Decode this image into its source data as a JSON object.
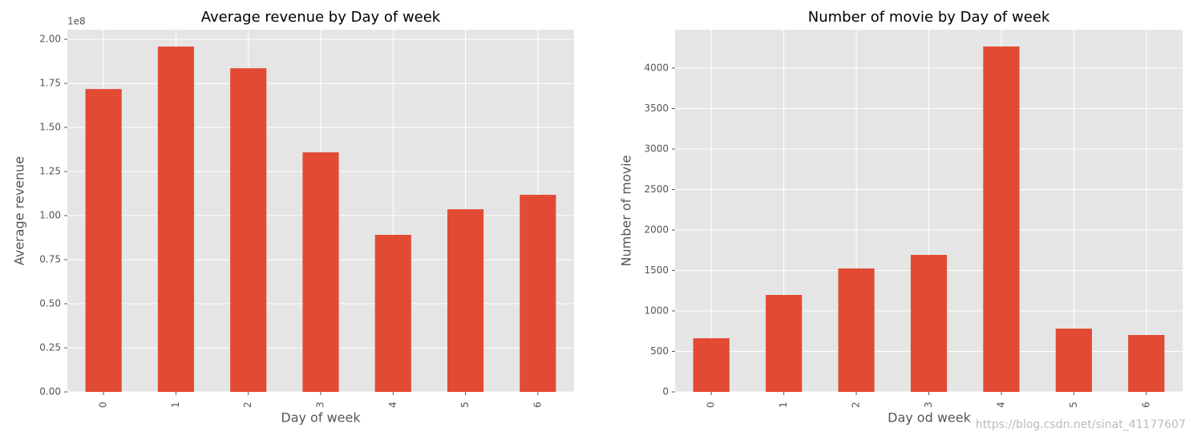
{
  "chart_data": [
    {
      "type": "bar",
      "title": "Average revenue by Day of week",
      "x_label": "Day of week",
      "y_label": "Average revenue",
      "y_offset_label": "1e8",
      "categories": [
        "0",
        "1",
        "2",
        "3",
        "4",
        "5",
        "6"
      ],
      "values": [
        1.718,
        1.959,
        1.836,
        1.359,
        0.891,
        1.036,
        1.118
      ],
      "color": "#e24a33",
      "ylim": [
        0,
        2.055
      ],
      "yticks": [
        {
          "value": 0,
          "label": "0.00"
        },
        {
          "value": 0.25,
          "label": "0.25"
        },
        {
          "value": 0.5,
          "label": "0.50"
        },
        {
          "value": 0.75,
          "label": "0.75"
        },
        {
          "value": 1,
          "label": "1.00"
        },
        {
          "value": 1.25,
          "label": "1.25"
        },
        {
          "value": 1.5,
          "label": "1.50"
        },
        {
          "value": 1.75,
          "label": "1.75"
        },
        {
          "value": 2,
          "label": "2.00"
        }
      ],
      "grid": true
    },
    {
      "type": "bar",
      "title": "Number of movie by Day of week",
      "x_label": "Day od week",
      "y_label": "Number of movie",
      "watermark": "https://blog.csdn.net/sinat_41177607",
      "categories": [
        "0",
        "1",
        "2",
        "3",
        "4",
        "5",
        "6"
      ],
      "values": [
        663,
        1198,
        1525,
        1693,
        4267,
        782,
        703
      ],
      "color": "#e24a33",
      "ylim": [
        0,
        4475
      ],
      "yticks": [
        0,
        500,
        1000,
        1500,
        2000,
        2500,
        3000,
        3500,
        4000
      ],
      "grid": true
    }
  ]
}
